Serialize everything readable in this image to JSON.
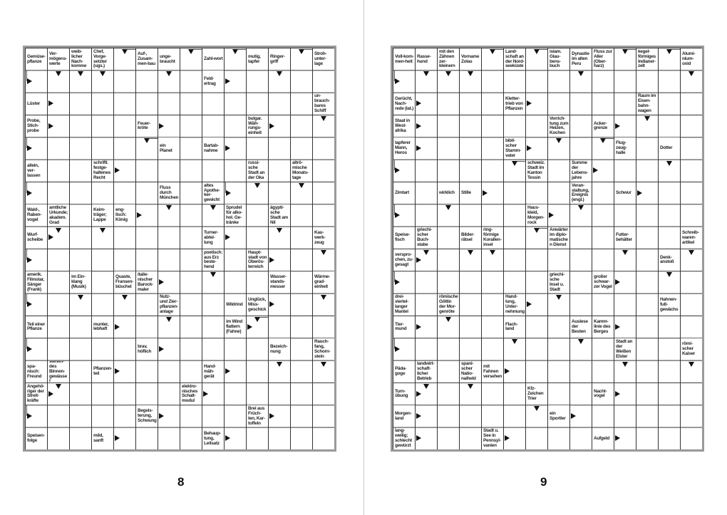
{
  "pages": [
    {
      "page_number": "8",
      "clues": [
        [
          0,
          0,
          "Gemüse-pflanze"
        ],
        [
          0,
          1,
          "Ver-mögens-werte"
        ],
        [
          0,
          2,
          "weib-licher Nach-komme"
        ],
        [
          0,
          3,
          "Chef, Vorge-setzter (ugs.)"
        ],
        [
          0,
          5,
          "Auf-, Zusam-men-bau"
        ],
        [
          0,
          6,
          "unge-braucht"
        ],
        [
          0,
          8,
          "Zahl-wort"
        ],
        [
          0,
          10,
          "mutig, tapfer"
        ],
        [
          0,
          11,
          "Ringer-griff"
        ],
        [
          0,
          13,
          "Stroh-unter-lage"
        ],
        [
          1,
          8,
          "Feld-ertrag"
        ],
        [
          2,
          0,
          "Lüster"
        ],
        [
          2,
          13,
          "un-brauch-bares Schiff"
        ],
        [
          3,
          0,
          "Probe, Stich-probe"
        ],
        [
          3,
          5,
          "Feuer-kröte"
        ],
        [
          3,
          10,
          "bulgar. Wäh-rungs-einheit"
        ],
        [
          4,
          6,
          "ein Planet"
        ],
        [
          4,
          8,
          "Bartab-nahme"
        ],
        [
          5,
          0,
          "allein, ver-lassen"
        ],
        [
          5,
          3,
          "schriftl. festge-haltenes Recht"
        ],
        [
          5,
          10,
          "russi-sche Stadt an der Oka"
        ],
        [
          5,
          12,
          "altrö-mische Monats-tage"
        ],
        [
          6,
          6,
          "Fluss durch München"
        ],
        [
          6,
          8,
          "altes Apothe-ker-gewicht"
        ],
        [
          7,
          0,
          "Wald-, Raben-vogel"
        ],
        [
          7,
          1,
          "amtliche Urkunde; akadem. Grad"
        ],
        [
          7,
          3,
          "Keim-träger; Lappe"
        ],
        [
          7,
          4,
          "eng-lisch: König"
        ],
        [
          7,
          9,
          "Sprudel für alko-hol. Ge-tränke"
        ],
        [
          7,
          11,
          "ägypti-sche Stadt am Nil"
        ],
        [
          8,
          0,
          "Wurf-scheibe"
        ],
        [
          8,
          8,
          "Turner-abtei-lung"
        ],
        [
          8,
          13,
          "Kau-werk-zeug"
        ],
        [
          9,
          8,
          "poetisch: aus Erz beste-hend"
        ],
        [
          9,
          10,
          "Haupt-stadt von Oberös-terreich"
        ],
        [
          10,
          0,
          "amerik. Filmstar, Sänger (Frank)"
        ],
        [
          10,
          2,
          "im Ein-klang (Musik)"
        ],
        [
          10,
          4,
          "Quaste, Fransen-büschel"
        ],
        [
          10,
          5,
          "italie-nischer Barock-maler"
        ],
        [
          10,
          11,
          "Wasser-stands-messer"
        ],
        [
          10,
          13,
          "Wärme-grad-einheit"
        ],
        [
          11,
          6,
          "Nutz- und Zier-pflanzen-anlage"
        ],
        [
          11,
          9,
          "Wildrind"
        ],
        [
          11,
          10,
          "Unglück, Miss-geschick"
        ],
        [
          12,
          0,
          "Teil einer Pflanze"
        ],
        [
          12,
          3,
          "munter, lebhaft"
        ],
        [
          12,
          9,
          "im Wind flattern (Fahne)"
        ],
        [
          13,
          5,
          "brav, höflich"
        ],
        [
          13,
          11,
          "Bezeich-nung"
        ],
        [
          13,
          13,
          "Rauch-fang, Schorn-stein"
        ],
        [
          14,
          0,
          "spa-nisch: Freund"
        ],
        [
          14,
          1,
          "stehen-des Binnen-gewässer"
        ],
        [
          14,
          3,
          "Pflanzen-teil"
        ],
        [
          14,
          8,
          "Hand-mäh-gerät"
        ],
        [
          15,
          0,
          "Angehö-riger der Streit-kräfte"
        ],
        [
          15,
          7,
          "elektro-nisches Schalt-modul"
        ],
        [
          16,
          5,
          "Begeis-terung, Schwung"
        ],
        [
          16,
          10,
          "Brei aus Früch-ten, Kar-toffeln"
        ],
        [
          17,
          0,
          "Speisen-folge"
        ],
        [
          17,
          3,
          "mild, sanft"
        ],
        [
          17,
          8,
          "Behaup-tung, Leitsatz"
        ]
      ],
      "arrows": [
        [
          0,
          4,
          "HD"
        ],
        [
          0,
          7,
          "HD"
        ],
        [
          0,
          9,
          "HD"
        ],
        [
          0,
          12,
          "HD"
        ],
        [
          1,
          0,
          "HR"
        ],
        [
          1,
          1,
          "D"
        ],
        [
          1,
          2,
          "D"
        ],
        [
          1,
          3,
          "D"
        ],
        [
          1,
          6,
          "D"
        ],
        [
          1,
          9,
          "R"
        ],
        [
          1,
          11,
          "D"
        ],
        [
          2,
          1,
          "R"
        ],
        [
          3,
          1,
          "R"
        ],
        [
          3,
          6,
          "R"
        ],
        [
          3,
          11,
          "R"
        ],
        [
          3,
          13,
          "D"
        ],
        [
          4,
          0,
          "HR"
        ],
        [
          4,
          5,
          "HD"
        ],
        [
          4,
          9,
          "R"
        ],
        [
          5,
          4,
          "R"
        ],
        [
          6,
          0,
          "HR"
        ],
        [
          6,
          9,
          "HR"
        ],
        [
          6,
          10,
          "D"
        ],
        [
          6,
          12,
          "D"
        ],
        [
          7,
          5,
          "R"
        ],
        [
          7,
          6,
          "D"
        ],
        [
          7,
          8,
          "D"
        ],
        [
          8,
          1,
          "R"
        ],
        [
          8,
          1,
          "D"
        ],
        [
          8,
          3,
          "D"
        ],
        [
          8,
          9,
          "R"
        ],
        [
          8,
          11,
          "D"
        ],
        [
          9,
          0,
          "HR"
        ],
        [
          9,
          11,
          "R"
        ],
        [
          9,
          13,
          "D"
        ],
        [
          10,
          6,
          "R"
        ],
        [
          10,
          8,
          "D"
        ],
        [
          11,
          0,
          "HR"
        ],
        [
          11,
          2,
          "D"
        ],
        [
          11,
          4,
          "D"
        ],
        [
          11,
          11,
          "R"
        ],
        [
          11,
          13,
          "D"
        ],
        [
          12,
          4,
          "R"
        ],
        [
          12,
          6,
          "D"
        ],
        [
          12,
          10,
          "R"
        ],
        [
          12,
          10,
          "HD"
        ],
        [
          13,
          0,
          "HR"
        ],
        [
          13,
          6,
          "R"
        ],
        [
          14,
          4,
          "R"
        ],
        [
          14,
          9,
          "R"
        ],
        [
          14,
          11,
          "D"
        ],
        [
          14,
          13,
          "D"
        ],
        [
          15,
          1,
          "R"
        ],
        [
          15,
          1,
          "D"
        ],
        [
          15,
          8,
          "R"
        ],
        [
          16,
          0,
          "HR"
        ],
        [
          16,
          6,
          "R"
        ],
        [
          16,
          11,
          "R"
        ],
        [
          17,
          4,
          "R"
        ],
        [
          17,
          9,
          "R"
        ]
      ]
    },
    {
      "page_number": "9",
      "clues": [
        [
          0,
          0,
          "Voll-kom-men-heit"
        ],
        [
          0,
          1,
          "Rasse-hund"
        ],
        [
          0,
          2,
          "mit den Zähnen zer-kleinern"
        ],
        [
          0,
          3,
          "Vorname Zolas"
        ],
        [
          0,
          5,
          "Land-schaft an der Nord-seeküste"
        ],
        [
          0,
          7,
          "islam. Glau-bens-buch"
        ],
        [
          0,
          8,
          "Dynastie im alten Peru"
        ],
        [
          0,
          9,
          "Fluss zur Aller (Ober-harz)"
        ],
        [
          0,
          11,
          "kegel-förmiges Indianer-zelt"
        ],
        [
          0,
          13,
          "Alumi-nium-oxid"
        ],
        [
          2,
          0,
          "Gerücht, Nach-rede (lat.)"
        ],
        [
          2,
          5,
          "Kletter-trieb von Pflanzen"
        ],
        [
          2,
          11,
          "Raum im Eisen-bahn-wagen"
        ],
        [
          3,
          0,
          "Staat in West-afrika"
        ],
        [
          3,
          7,
          "Vorrich-tung zum Heizen, Kochen"
        ],
        [
          3,
          9,
          "Acker-grenze"
        ],
        [
          4,
          0,
          "tapferer Mann, Heros"
        ],
        [
          4,
          5,
          "bibli-scher Stamm-vater"
        ],
        [
          4,
          10,
          "Flug-zeug-halle"
        ],
        [
          4,
          12,
          "Dotter"
        ],
        [
          5,
          6,
          "schweiz. Stadt im Kanton Tessin"
        ],
        [
          5,
          8,
          "Summe der Lebens-jahre"
        ],
        [
          6,
          0,
          "Zimtart"
        ],
        [
          6,
          2,
          "wirklich"
        ],
        [
          6,
          3,
          "Stille"
        ],
        [
          6,
          8,
          "Veran-staltung, Ereignis (engl.)"
        ],
        [
          6,
          10,
          "Schwur"
        ],
        [
          7,
          6,
          "Haus-kleid, Morgen-rock"
        ],
        [
          8,
          0,
          "Speise-fisch"
        ],
        [
          8,
          1,
          "griechi-scher Buch-stabe"
        ],
        [
          8,
          3,
          "Bilder-rätsel"
        ],
        [
          8,
          4,
          "ring-förmige Korallen-insel"
        ],
        [
          8,
          7,
          "Anwärter im diplo-matischen Dienst"
        ],
        [
          8,
          10,
          "Futter-behälter"
        ],
        [
          8,
          13,
          "Schreib-waren-artikel"
        ],
        [
          9,
          0,
          "verspro-chen, zu-gesagt"
        ],
        [
          9,
          12,
          "Denk-anstoß"
        ],
        [
          10,
          7,
          "griechi-sche Insel u. Stadt"
        ],
        [
          10,
          9,
          "großer schwar-zer Vogel"
        ],
        [
          11,
          0,
          "drei-viertel-langer Mantel"
        ],
        [
          11,
          2,
          "römische Göttin der Mor-genröte"
        ],
        [
          11,
          5,
          "Hand-lung, Unter-nehmung"
        ],
        [
          11,
          12,
          "Hahnen-fuß-gewächs"
        ],
        [
          12,
          0,
          "Tier-mund"
        ],
        [
          12,
          5,
          "Flach-land"
        ],
        [
          12,
          8,
          "Auslese der Besten"
        ],
        [
          12,
          9,
          "Kamm-linie des Berges"
        ],
        [
          13,
          10,
          "Stadt an der Weißen Elster"
        ],
        [
          13,
          13,
          "römi-scher Kaiser"
        ],
        [
          14,
          0,
          "Päda-goge"
        ],
        [
          14,
          1,
          "landwirt-schaft-licher Betrieb"
        ],
        [
          14,
          3,
          "spani-scher Natio-nalheld"
        ],
        [
          14,
          4,
          "mit Fahnen versehen"
        ],
        [
          15,
          0,
          "Turn-übung"
        ],
        [
          15,
          6,
          "Kfz-Zeichen Trier"
        ],
        [
          15,
          9,
          "Nacht-vogel"
        ],
        [
          16,
          0,
          "Morgen-land"
        ],
        [
          16,
          7,
          "ein Sportler"
        ],
        [
          17,
          0,
          "lang-weilig; schlecht gewürzt"
        ],
        [
          17,
          4,
          "Stadt u. See in Pennsyl-vanien"
        ],
        [
          17,
          9,
          "Aufgeld"
        ]
      ],
      "arrows": [
        [
          0,
          4,
          "HD"
        ],
        [
          0,
          6,
          "HD"
        ],
        [
          0,
          10,
          "HD"
        ],
        [
          0,
          12,
          "HD"
        ],
        [
          1,
          0,
          "HR"
        ],
        [
          1,
          1,
          "D"
        ],
        [
          1,
          2,
          "D"
        ],
        [
          1,
          3,
          "D"
        ],
        [
          1,
          8,
          "D"
        ],
        [
          1,
          13,
          "D"
        ],
        [
          2,
          1,
          "R"
        ],
        [
          2,
          6,
          "R"
        ],
        [
          3,
          1,
          "R"
        ],
        [
          3,
          10,
          "R"
        ],
        [
          3,
          11,
          "D"
        ],
        [
          4,
          1,
          "R"
        ],
        [
          4,
          6,
          "R"
        ],
        [
          4,
          7,
          "D"
        ],
        [
          4,
          9,
          "HD"
        ],
        [
          5,
          0,
          "HR"
        ],
        [
          5,
          5,
          "HD"
        ],
        [
          5,
          9,
          "R"
        ],
        [
          5,
          12,
          "D"
        ],
        [
          6,
          4,
          "R"
        ],
        [
          6,
          11,
          "R"
        ],
        [
          7,
          0,
          "HR"
        ],
        [
          7,
          2,
          "D"
        ],
        [
          7,
          7,
          "R"
        ],
        [
          7,
          8,
          "D"
        ],
        [
          8,
          6,
          "HD"
        ],
        [
          9,
          1,
          "R"
        ],
        [
          9,
          1,
          "D"
        ],
        [
          9,
          3,
          "D"
        ],
        [
          9,
          4,
          "D"
        ],
        [
          9,
          10,
          "D"
        ],
        [
          9,
          13,
          "D"
        ],
        [
          10,
          0,
          "HR"
        ],
        [
          10,
          10,
          "R"
        ],
        [
          10,
          12,
          "D"
        ],
        [
          11,
          6,
          "R"
        ],
        [
          11,
          7,
          "D"
        ],
        [
          12,
          1,
          "R"
        ],
        [
          12,
          2,
          "D"
        ],
        [
          12,
          10,
          "R"
        ],
        [
          13,
          0,
          "HR"
        ],
        [
          13,
          5,
          "D"
        ],
        [
          13,
          8,
          "D"
        ],
        [
          14,
          5,
          "R"
        ],
        [
          14,
          10,
          "D"
        ],
        [
          14,
          13,
          "D"
        ],
        [
          15,
          1,
          "R"
        ],
        [
          15,
          1,
          "D"
        ],
        [
          15,
          3,
          "D"
        ],
        [
          15,
          10,
          "R"
        ],
        [
          16,
          1,
          "R"
        ],
        [
          16,
          6,
          "D"
        ],
        [
          16,
          8,
          "R"
        ],
        [
          17,
          1,
          "R"
        ],
        [
          17,
          5,
          "R"
        ],
        [
          17,
          10,
          "R"
        ]
      ]
    }
  ]
}
